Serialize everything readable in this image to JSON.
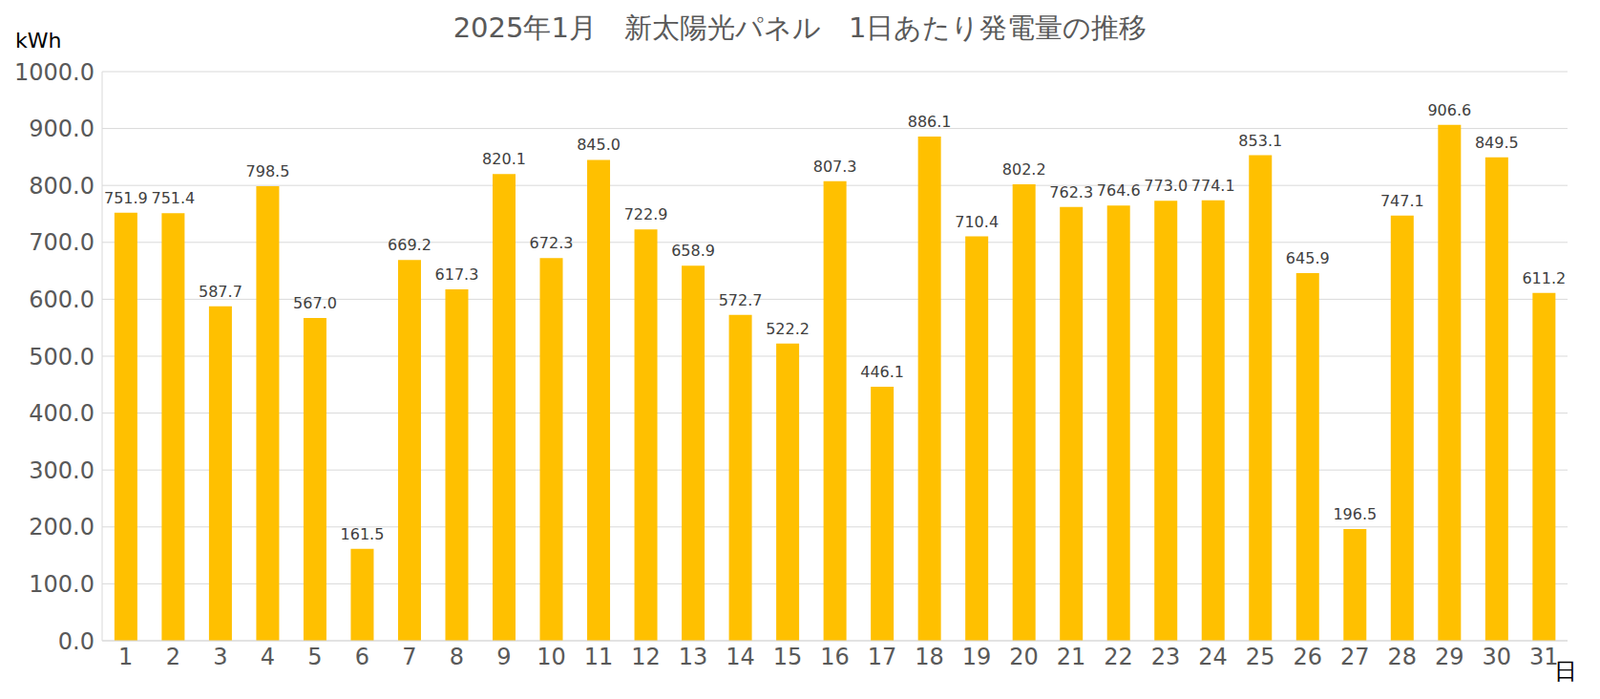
{
  "chart_data": {
    "type": "bar",
    "title": "2025年1月　新太陽光パネル　1日あたり発電量の推移",
    "y_label": "kWh",
    "x_label": "日",
    "categories": [
      "1",
      "2",
      "3",
      "4",
      "5",
      "6",
      "7",
      "8",
      "9",
      "10",
      "11",
      "12",
      "13",
      "14",
      "15",
      "16",
      "17",
      "18",
      "19",
      "20",
      "21",
      "22",
      "23",
      "24",
      "25",
      "26",
      "27",
      "28",
      "29",
      "30",
      "31"
    ],
    "values": [
      751.9,
      751.4,
      587.7,
      798.5,
      567.0,
      161.5,
      669.2,
      617.3,
      820.1,
      672.3,
      845.0,
      722.9,
      658.9,
      572.7,
      522.2,
      807.3,
      446.1,
      886.1,
      710.4,
      802.2,
      762.3,
      764.6,
      773.0,
      774.1,
      853.1,
      645.9,
      196.5,
      747.1,
      906.6,
      849.5,
      611.2
    ],
    "value_labels": [
      "751.9",
      "751.4",
      "587.7",
      "798.5",
      "567.0",
      "161.5",
      "669.2",
      "617.3",
      "820.1",
      "672.3",
      "845.0",
      "722.9",
      "658.9",
      "572.7",
      "522.2",
      "807.3",
      "446.1",
      "886.1",
      "710.4",
      "802.2",
      "762.3",
      "764.6",
      "773.0",
      "774.1",
      "853.1",
      "645.9",
      "196.5",
      "747.1",
      "906.6",
      "849.5",
      "611.2"
    ],
    "color": "#ffc000",
    "ylim": [
      0,
      1000
    ],
    "yticks": [
      {
        "value": 0,
        "label": "0.0"
      },
      {
        "value": 100,
        "label": "100.0"
      },
      {
        "value": 200,
        "label": "200.0"
      },
      {
        "value": 300,
        "label": "300.0"
      },
      {
        "value": 400,
        "label": "400.0"
      },
      {
        "value": 500,
        "label": "500.0"
      },
      {
        "value": 600,
        "label": "600.0"
      },
      {
        "value": 700,
        "label": "700.0"
      },
      {
        "value": 800,
        "label": "800.0"
      },
      {
        "value": 900,
        "label": "900.0"
      },
      {
        "value": 1000,
        "label": "1000.0"
      }
    ],
    "grid": true,
    "data_labels": true
  }
}
